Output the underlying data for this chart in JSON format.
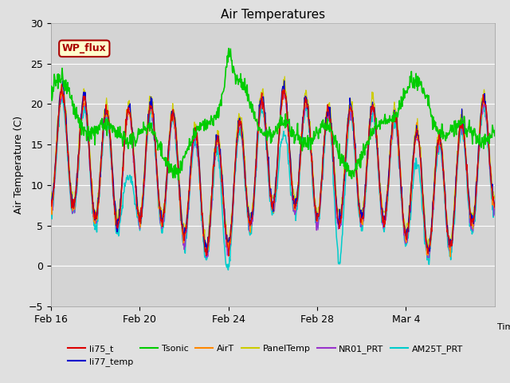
{
  "title": "Air Temperatures",
  "ylabel": "Air Temperature (C)",
  "xlabel": "Time",
  "ylim": [
    -5,
    30
  ],
  "figsize": [
    6.4,
    4.8
  ],
  "dpi": 100,
  "background_color": "#e0e0e0",
  "plot_bg_color": "#d4d4d4",
  "grid_color": "#ffffff",
  "series": {
    "li75_t": {
      "color": "#dd0000",
      "lw": 0.9
    },
    "li77_temp": {
      "color": "#0000cc",
      "lw": 0.9
    },
    "Tsonic": {
      "color": "#00cc00",
      "lw": 1.2
    },
    "AirT": {
      "color": "#ff8800",
      "lw": 0.9
    },
    "PanelTemp": {
      "color": "#cccc00",
      "lw": 0.9
    },
    "NR01_PRT": {
      "color": "#9933cc",
      "lw": 0.9
    },
    "AM25T_PRT": {
      "color": "#00cccc",
      "lw": 1.1
    }
  },
  "wp_flux_box": {
    "text": "WP_flux",
    "facecolor": "#ffffcc",
    "edgecolor": "#aa0000",
    "textcolor": "#aa0000"
  },
  "n_days": 20,
  "pts_per_day": 48,
  "tick_dates": [
    "Feb 16",
    "Feb 20",
    "Feb 24",
    "Feb 28",
    "Mar 4"
  ],
  "tick_positions": [
    0,
    4,
    8,
    12,
    16
  ],
  "yticks": [
    -5,
    0,
    5,
    10,
    15,
    20,
    25,
    30
  ]
}
